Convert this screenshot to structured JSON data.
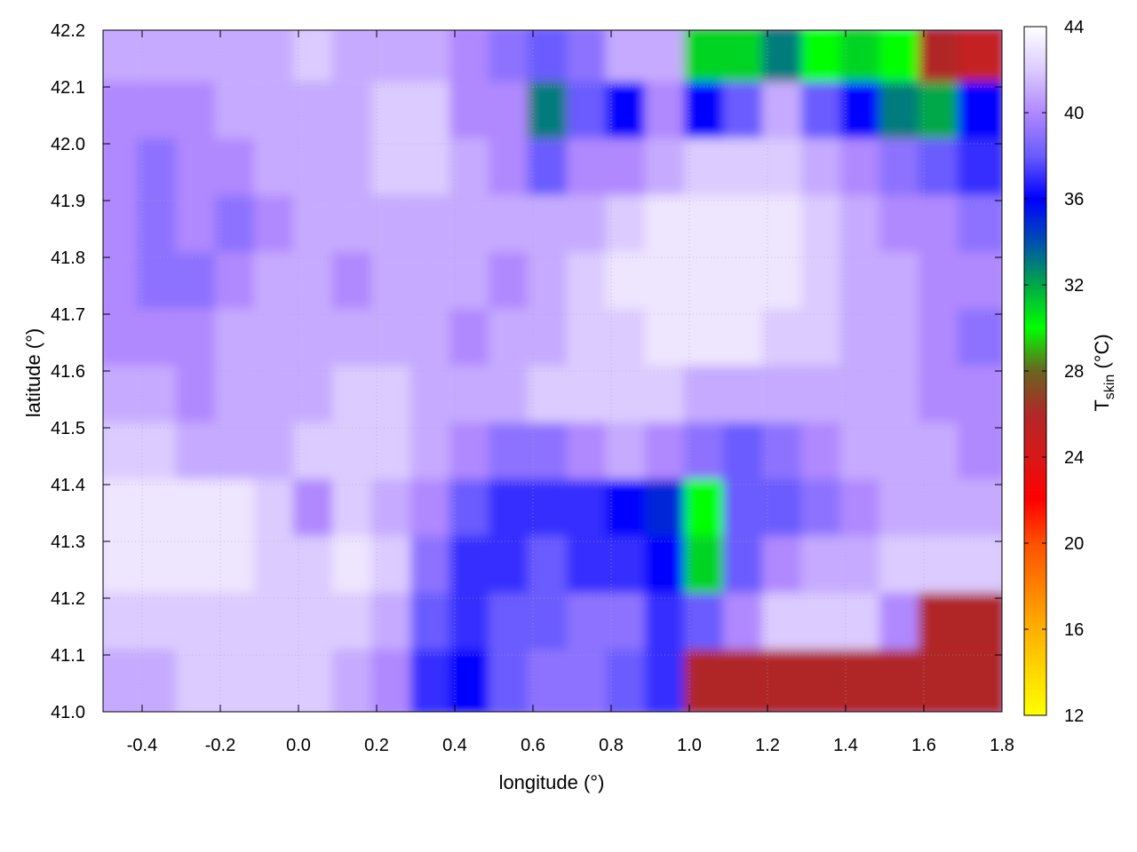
{
  "chart_data": {
    "type": "heatmap",
    "title": "",
    "xlabel": "longitude (°)",
    "ylabel": "latitude (°)",
    "colorbar_label_main": "T",
    "colorbar_label_sub": "skin",
    "colorbar_label_unit": " (°C)",
    "xlim": [
      -0.5,
      1.8
    ],
    "ylim": [
      41.0,
      42.2
    ],
    "clim": [
      12,
      44
    ],
    "xticks": [
      "-0.4",
      "-0.2",
      "0.0",
      "0.2",
      "0.4",
      "0.6",
      "0.8",
      "1.0",
      "1.2",
      "1.4",
      "1.6",
      "1.8"
    ],
    "xtick_values": [
      -0.4,
      -0.2,
      0.0,
      0.2,
      0.4,
      0.6,
      0.8,
      1.0,
      1.2,
      1.4,
      1.6,
      1.8
    ],
    "yticks": [
      "41.0",
      "41.1",
      "41.2",
      "41.3",
      "41.4",
      "41.5",
      "41.6",
      "41.7",
      "41.8",
      "41.9",
      "42.0",
      "42.1",
      "42.2"
    ],
    "ytick_values": [
      41.0,
      41.1,
      41.2,
      41.3,
      41.4,
      41.5,
      41.6,
      41.7,
      41.8,
      41.9,
      42.0,
      42.1,
      42.2
    ],
    "cticks": [
      "12",
      "16",
      "20",
      "24",
      "28",
      "32",
      "36",
      "40",
      "44"
    ],
    "ctick_values": [
      12,
      16,
      20,
      24,
      28,
      32,
      36,
      40,
      44
    ],
    "grid": true,
    "colormap": [
      [
        12,
        "#ffff00"
      ],
      [
        16,
        "#ffb000"
      ],
      [
        20,
        "#ff5000"
      ],
      [
        22,
        "#ff0000"
      ],
      [
        24,
        "#d81818"
      ],
      [
        26,
        "#b02828"
      ],
      [
        28,
        "#6a6420"
      ],
      [
        30,
        "#00ff00"
      ],
      [
        32,
        "#00a848"
      ],
      [
        34,
        "#0050b0"
      ],
      [
        36,
        "#0000ff"
      ],
      [
        38,
        "#6a5cff"
      ],
      [
        40,
        "#b088ff"
      ],
      [
        42,
        "#dccbff"
      ],
      [
        44,
        "#ffffff"
      ]
    ],
    "grid_lon_centers": [
      -0.45,
      -0.35,
      -0.25,
      -0.15,
      -0.05,
      0.05,
      0.15,
      0.25,
      0.35,
      0.45,
      0.55,
      0.65,
      0.75,
      0.85,
      0.95,
      1.05,
      1.15,
      1.25,
      1.35,
      1.45,
      1.55,
      1.65,
      1.75
    ],
    "grid_lat_centers": [
      42.15,
      42.05,
      41.95,
      41.85,
      41.75,
      41.65,
      41.55,
      41.45,
      41.35,
      41.25,
      41.15,
      41.05
    ],
    "values": [
      [
        41,
        41,
        41,
        41,
        41,
        42,
        41,
        41,
        41,
        40,
        39,
        38,
        39,
        41,
        41,
        31,
        31,
        33,
        30,
        31,
        30,
        26,
        25
      ],
      [
        40,
        40,
        40,
        41,
        41,
        41,
        41,
        42,
        42,
        40,
        40,
        33,
        38,
        36,
        40,
        36,
        38,
        41,
        38,
        36,
        33,
        32,
        36
      ],
      [
        40,
        39,
        40,
        40,
        41,
        41,
        41,
        42,
        42,
        41,
        40,
        38,
        40,
        40,
        41,
        42,
        42,
        42,
        41,
        40,
        39,
        38,
        37
      ],
      [
        40,
        39,
        40,
        39,
        40,
        41,
        41,
        41,
        41,
        41,
        41,
        41,
        41,
        42,
        43,
        43,
        43,
        43,
        42,
        41,
        40,
        40,
        39
      ],
      [
        40,
        39,
        39,
        40,
        41,
        41,
        40,
        41,
        41,
        41,
        40,
        41,
        42,
        43,
        43,
        43,
        43,
        43,
        42,
        41,
        41,
        40,
        40
      ],
      [
        40,
        40,
        40,
        41,
        41,
        41,
        41,
        41,
        41,
        40,
        41,
        41,
        42,
        42,
        43,
        43,
        43,
        42,
        42,
        41,
        41,
        40,
        39
      ],
      [
        41,
        41,
        40,
        41,
        41,
        41,
        42,
        42,
        41,
        41,
        41,
        42,
        42,
        42,
        42,
        41,
        41,
        41,
        41,
        41,
        41,
        40,
        40
      ],
      [
        42,
        42,
        41,
        41,
        41,
        42,
        42,
        42,
        41,
        40,
        39,
        39,
        40,
        41,
        40,
        39,
        38,
        39,
        40,
        41,
        41,
        41,
        40
      ],
      [
        43,
        43,
        43,
        43,
        42,
        40,
        42,
        41,
        40,
        38,
        37,
        37,
        37,
        36,
        35,
        30,
        38,
        38,
        39,
        40,
        41,
        41,
        41
      ],
      [
        43,
        43,
        43,
        43,
        42,
        42,
        43,
        42,
        39,
        37,
        37,
        38,
        37,
        37,
        36,
        31,
        38,
        40,
        41,
        41,
        42,
        42,
        42
      ],
      [
        42,
        42,
        42,
        42,
        42,
        42,
        42,
        41,
        38,
        37,
        38,
        38,
        39,
        39,
        37,
        38,
        40,
        42,
        42,
        42,
        40,
        26,
        26
      ],
      [
        41,
        41,
        42,
        42,
        42,
        42,
        41,
        40,
        37,
        36,
        38,
        39,
        39,
        38,
        37,
        26,
        26,
        26,
        26,
        26,
        26,
        26,
        26
      ]
    ]
  }
}
